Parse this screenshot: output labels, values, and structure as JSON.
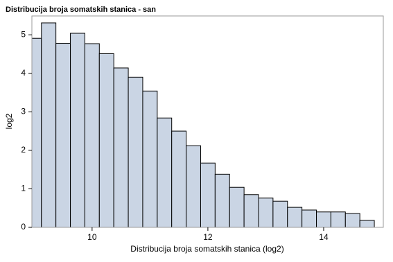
{
  "chart_data": {
    "type": "histogram",
    "title": "Distribucija broja somatskih stanica - san",
    "x_label": "Distribucija broja somatskih stanica (log2)",
    "y_label": "log2",
    "bins": [
      8.875,
      9.125,
      9.375,
      9.625,
      9.875,
      10.125,
      10.375,
      10.625,
      10.875,
      11.125,
      11.375,
      11.625,
      11.875,
      12.125,
      12.375,
      12.625,
      12.875,
      13.125,
      13.375,
      13.625,
      13.875,
      14.125,
      14.375,
      14.625,
      14.875
    ],
    "values": [
      4.91,
      5.31,
      4.78,
      5.04,
      4.77,
      4.51,
      4.14,
      3.9,
      3.54,
      2.84,
      2.5,
      2.12,
      1.67,
      1.38,
      1.04,
      0.85,
      0.76,
      0.68,
      0.52,
      0.45,
      0.4,
      0.4,
      0.36,
      0.18
    ],
    "color": "#cad5e4",
    "edge_color": "#000000",
    "xlim": [
      8.96,
      15.03
    ],
    "xticks": [
      10,
      12,
      14
    ],
    "ylim": [
      0,
      5.49
    ],
    "yticks": [
      0,
      1,
      2,
      3,
      4,
      5
    ]
  }
}
